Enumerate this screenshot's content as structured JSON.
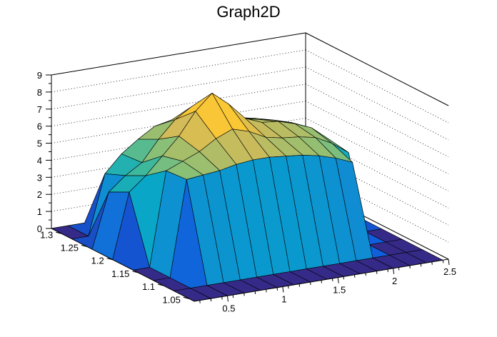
{
  "chart_data": {
    "type": "surface",
    "title": "Graph2D",
    "xlabel": "",
    "ylabel": "",
    "zlabel": "",
    "xlim": [
      0.2,
      2.5
    ],
    "ylim": [
      1.04,
      1.32
    ],
    "zlim": [
      0,
      9
    ],
    "x_ticks": [
      "0.5",
      "1",
      "1.5",
      "2",
      "2.5"
    ],
    "y_ticks": [
      "1.05",
      "1.1",
      "1.15",
      "1.2",
      "1.25",
      "1.3"
    ],
    "z_ticks": [
      "0",
      "1",
      "2",
      "3",
      "4",
      "5",
      "6",
      "7",
      "8",
      "9"
    ],
    "grid": true,
    "palette": [
      "#352a87",
      "#0f5cdd",
      "#1481d6",
      "#06a4ca",
      "#2eb7a4",
      "#87bf77",
      "#d1bb59",
      "#fec832",
      "#f9fb0e"
    ],
    "mesh_color": "#000000",
    "x_grid": [
      0.2,
      0.35,
      0.5,
      0.65,
      0.8,
      0.95,
      1.1,
      1.25,
      1.4,
      1.55,
      1.7,
      1.85,
      2.0,
      2.15,
      2.3,
      2.45
    ],
    "y_grid": [
      1.04,
      1.08,
      1.12,
      1.16,
      1.2,
      1.24,
      1.28,
      1.32
    ],
    "z": [
      [
        0,
        0,
        0,
        0,
        0,
        0,
        0,
        0,
        0,
        0,
        0,
        0,
        0,
        0,
        0,
        0
      ],
      [
        0,
        0,
        0,
        0,
        0,
        0,
        0,
        0,
        0,
        0,
        0,
        0,
        0,
        0,
        0,
        0
      ],
      [
        0,
        0,
        5.6,
        5.7,
        5.8,
        6.0,
        6.1,
        6.1,
        6.0,
        5.9,
        5.7,
        5.4,
        5.0,
        0,
        0,
        0
      ],
      [
        0,
        0,
        5.5,
        5.9,
        6.3,
        6.9,
        7.3,
        7.0,
        6.5,
        6.3,
        6.2,
        6.0,
        5.5,
        4.8,
        0,
        0
      ],
      [
        0,
        3.8,
        4.6,
        5.6,
        6.6,
        7.9,
        8.8,
        8.0,
        7.0,
        6.6,
        6.5,
        6.2,
        5.8,
        5.0,
        3.8,
        0
      ],
      [
        0,
        3.2,
        4.0,
        4.6,
        5.8,
        6.8,
        7.4,
        7.0,
        6.5,
        6.2,
        6.0,
        5.8,
        5.5,
        4.8,
        3.9,
        0
      ],
      [
        0,
        0,
        3.5,
        4.5,
        5.2,
        5.8,
        6.0,
        5.9,
        5.8,
        5.7,
        5.5,
        5.3,
        5.0,
        4.5,
        0,
        0
      ],
      [
        0,
        0,
        0,
        0,
        0,
        0,
        0,
        0,
        0,
        0,
        0,
        0,
        0,
        0,
        0,
        0
      ]
    ]
  }
}
